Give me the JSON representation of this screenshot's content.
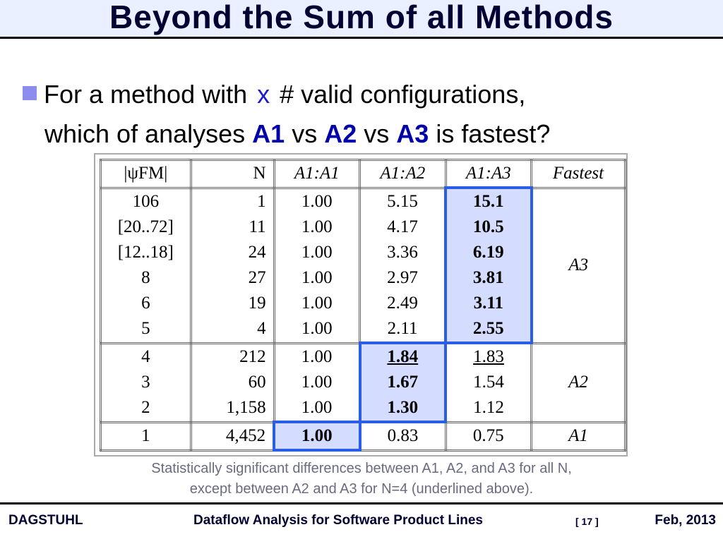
{
  "header": {
    "title": "Beyond the Sum of all Methods"
  },
  "bullet": [
    "For a method with",
    "x",
    "# valid configurations,",
    "which of analyses",
    "A1",
    "vs",
    "A2",
    "vs",
    "A3",
    "is fastest?"
  ],
  "table": {
    "header": [
      "|ψFM|",
      "N",
      "A1:A1",
      "A1:A2",
      "A1:A3",
      "Fastest"
    ],
    "groups": [
      {
        "fastest": "A3",
        "rows": [
          [
            "106",
            "1",
            "1.00",
            "5.15",
            "15.1"
          ],
          [
            "[20..72]",
            "11",
            "1.00",
            "4.17",
            "10.5"
          ],
          [
            "[12..18]",
            "24",
            "1.00",
            "3.36",
            "6.19"
          ],
          [
            "8",
            "27",
            "1.00",
            "2.97",
            "3.81"
          ],
          [
            "6",
            "19",
            "1.00",
            "2.49",
            "3.11"
          ],
          [
            "5",
            "4",
            "1.00",
            "2.11",
            "2.55"
          ]
        ]
      },
      {
        "fastest": "A2",
        "rows": [
          [
            "4",
            "212",
            "1.00",
            "1.84",
            "1.83"
          ],
          [
            "3",
            "60",
            "1.00",
            "1.67",
            "1.54"
          ],
          [
            "2",
            "1,158",
            "1.00",
            "1.30",
            "1.12"
          ]
        ]
      },
      {
        "fastest": "A1",
        "rows": [
          [
            "1",
            "4,452",
            "1.00",
            "0.83",
            "0.75"
          ]
        ]
      }
    ]
  },
  "caption": [
    "Statistically significant differences between A1, A2, and A3 for all N,",
    "except between A2 and A3 for N=4 (underlined above)."
  ],
  "footer": {
    "left": "DAGSTUHL",
    "center": "Dataflow Analysis for Software Product Lines",
    "page": "[ 17 ]",
    "right": "Feb, 2013"
  }
}
